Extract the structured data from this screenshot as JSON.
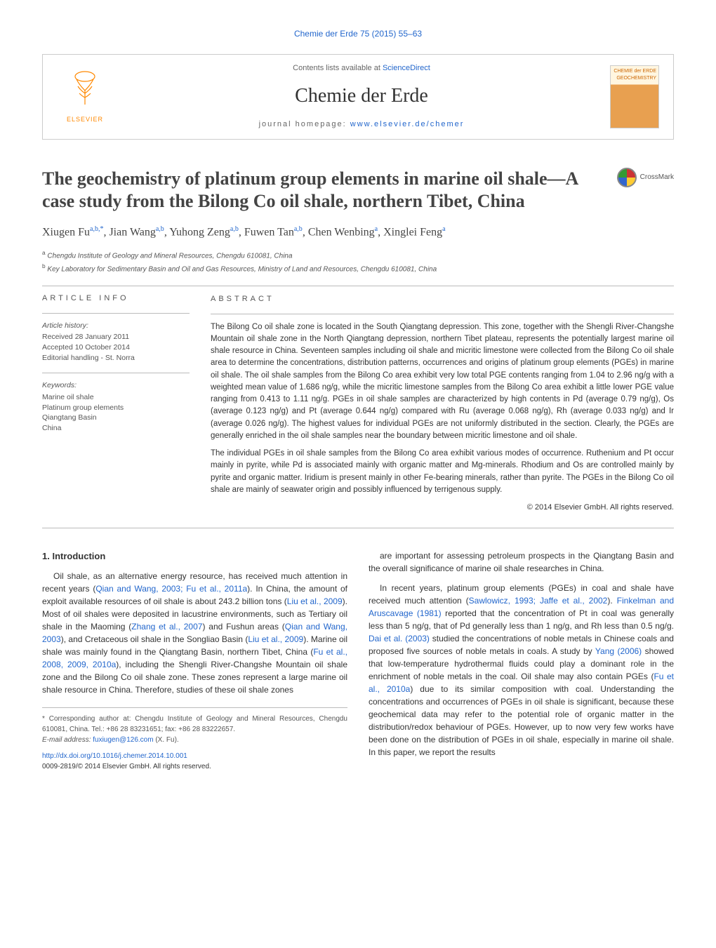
{
  "journal_ref": "Chemie der Erde 75 (2015) 55–63",
  "header": {
    "contents_prefix": "Contents lists available at ",
    "contents_link": "ScienceDirect",
    "journal_name": "Chemie der Erde",
    "homepage_prefix": "journal homepage: ",
    "homepage_link": "www.elsevier.de/chemer",
    "publisher": "ELSEVIER",
    "cover_text": "CHEMIE der ERDE GEOCHEMISTRY"
  },
  "crossmark_label": "CrossMark",
  "title": "The geochemistry of platinum group elements in marine oil shale—A case study from the Bilong Co oil shale, northern Tibet, China",
  "authors_html": "Xiugen Fu<sup>a,b,*</sup>, Jian Wang<sup>a,b</sup>, Yuhong Zeng<sup>a,b</sup>, Fuwen Tan<sup>a,b</sup>, Chen Wenbing<sup>a</sup>, Xinglei Feng<sup>a</sup>",
  "affiliations": {
    "a": "Chengdu Institute of Geology and Mineral Resources, Chengdu 610081, China",
    "b": "Key Laboratory for Sedimentary Basin and Oil and Gas Resources, Ministry of Land and Resources, Chengdu 610081, China"
  },
  "article_info": {
    "heading": "article info",
    "history_label": "Article history:",
    "received": "Received 28 January 2011",
    "accepted": "Accepted 10 October 2014",
    "editorial": "Editorial handling - St. Norra",
    "keywords_label": "Keywords:",
    "keywords": [
      "Marine oil shale",
      "Platinum group elements",
      "Qiangtang Basin",
      "China"
    ]
  },
  "abstract": {
    "heading": "abstract",
    "p1": "The Bilong Co oil shale zone is located in the South Qiangtang depression. This zone, together with the Shengli River-Changshe Mountain oil shale zone in the North Qiangtang depression, northern Tibet plateau, represents the potentially largest marine oil shale resource in China. Seventeen samples including oil shale and micritic limestone were collected from the Bilong Co oil shale area to determine the concentrations, distribution patterns, occurrences and origins of platinum group elements (PGEs) in marine oil shale. The oil shale samples from the Bilong Co area exhibit very low total PGE contents ranging from 1.04 to 2.96 ng/g with a weighted mean value of 1.686 ng/g, while the micritic limestone samples from the Bilong Co area exhibit a little lower PGE value ranging from 0.413 to 1.11 ng/g. PGEs in oil shale samples are characterized by high contents in Pd (average 0.79 ng/g), Os (average 0.123 ng/g) and Pt (average 0.644 ng/g) compared with Ru (average 0.068 ng/g), Rh (average 0.033 ng/g) and Ir (average 0.026 ng/g). The highest values for individual PGEs are not uniformly distributed in the section. Clearly, the PGEs are generally enriched in the oil shale samples near the boundary between micritic limestone and oil shale.",
    "p2": "The individual PGEs in oil shale samples from the Bilong Co area exhibit various modes of occurrence. Ruthenium and Pt occur mainly in pyrite, while Pd is associated mainly with organic matter and Mg-minerals. Rhodium and Os are controlled mainly by pyrite and organic matter. Iridium is present mainly in other Fe-bearing minerals, rather than pyrite. The PGEs in the Bilong Co oil shale are mainly of seawater origin and possibly influenced by terrigenous supply.",
    "copyright": "© 2014 Elsevier GmbH. All rights reserved."
  },
  "intro": {
    "heading": "1.  Introduction",
    "p1_pre": "Oil shale, as an alternative energy resource, has received much attention in recent years (",
    "p1_c1": "Qian and Wang, 2003; Fu et al., 2011a",
    "p1_mid1": "). In China, the amount of exploit available resources of oil shale is about 243.2 billion tons (",
    "p1_c2": "Liu et al., 2009",
    "p1_mid2": "). Most of oil shales were deposited in lacustrine environments, such as Tertiary oil shale in the Maoming (",
    "p1_c3": "Zhang et al., 2007",
    "p1_mid3": ") and Fushun areas (",
    "p1_c4": "Qian and Wang, 2003",
    "p1_mid4": "), and Cretaceous oil shale in the Songliao Basin (",
    "p1_c5": "Liu et al., 2009",
    "p1_mid5": "). Marine oil shale was mainly found in the Qiangtang Basin, northern Tibet, China (",
    "p1_c6": "Fu et al., 2008, 2009, 2010a",
    "p1_post": "), including the Shengli River-Changshe Mountain oil shale zone and the Bilong Co oil shale zone. These zones represent a large marine oil shale resource in China. Therefore, studies of these oil shale zones",
    "p2": "are important for assessing petroleum prospects in the Qiangtang Basin and the overall significance of marine oil shale researches in China.",
    "p3_pre": "In recent years, platinum group elements (PGEs) in coal and shale have received much attention (",
    "p3_c1": "Sawlowicz, 1993; Jaffe et al., 2002",
    "p3_mid1": "). ",
    "p3_c2": "Finkelman and Aruscavage (1981)",
    "p3_mid2": " reported that the concentration of Pt in coal was generally less than 5 ng/g, that of Pd generally less than 1 ng/g, and Rh less than 0.5 ng/g. ",
    "p3_c3": "Dai et al. (2003)",
    "p3_mid3": " studied the concentrations of noble metals in Chinese coals and proposed five sources of noble metals in coals. A study by ",
    "p3_c4": "Yang (2006)",
    "p3_mid4": " showed that low-temperature hydrothermal fluids could play a dominant role in the enrichment of noble metals in the coal. Oil shale may also contain PGEs (",
    "p3_c5": "Fu et al., 2010a",
    "p3_post": ") due to its similar composition with coal. Understanding the concentrations and occurrences of PGEs in oil shale is significant, because these geochemical data may refer to the potential role of organic matter in the distribution/redox behaviour of PGEs. However, up to now very few works have been done on the distribution of PGEs in oil shale, especially in marine oil shale. In this paper, we report the results"
  },
  "footnote": {
    "corr": "* Corresponding author at: Chengdu Institute of Geology and Mineral Resources, Chengdu 610081, China. Tel.: +86 28 83231651; fax: +86 28 83222657.",
    "email_label": "E-mail address: ",
    "email": "fuxiugen@126.com",
    "email_post": " (X. Fu)."
  },
  "doi": {
    "url": "http://dx.doi.org/10.1016/j.chemer.2014.10.001",
    "issn": "0009-2819/© 2014 Elsevier GmbH. All rights reserved."
  },
  "colors": {
    "link": "#2266cc",
    "text": "#333333",
    "muted": "#555555",
    "rule": "#bbbbbb",
    "elsevier": "#ff8800"
  }
}
